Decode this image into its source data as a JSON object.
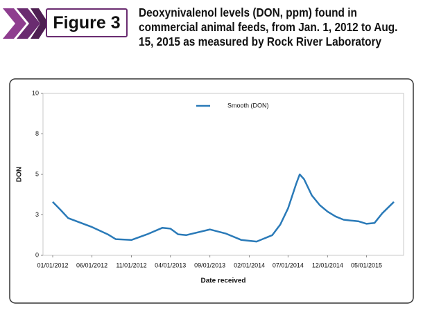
{
  "figure_label": "Figure 3",
  "chart_data": {
    "type": "line",
    "title": "Deoxynivalenol levels (DON, ppm) found in commercial animal feeds, from Jan. 1, 2012 to Aug. 15, 2015 as measured by Rock River Laboratory",
    "xlabel": "Date received",
    "ylabel": "DON",
    "x": [
      "01/01/2012",
      "02/01/2012",
      "03/01/2012",
      "06/01/2012",
      "08/01/2012",
      "09/01/2012",
      "11/01/2012",
      "01/01/2013",
      "03/01/2013",
      "04/01/2013",
      "05/01/2013",
      "06/01/2013",
      "09/01/2013",
      "11/01/2013",
      "01/01/2014",
      "03/01/2014",
      "05/01/2014",
      "06/01/2014",
      "07/01/2014",
      "08/01/2014",
      "08/15/2014",
      "09/01/2014",
      "10/01/2014",
      "11/01/2014",
      "12/01/2014",
      "01/01/2015",
      "02/01/2015",
      "03/01/2015",
      "04/01/2015",
      "05/01/2015",
      "06/01/2015",
      "07/01/2015",
      "08/15/2015"
    ],
    "series": [
      {
        "name": "Smooth (DON)",
        "color": "#2a7ab8",
        "values": [
          3.3,
          2.8,
          2.3,
          1.75,
          1.3,
          1.0,
          0.95,
          1.3,
          1.7,
          1.65,
          1.3,
          1.25,
          1.6,
          1.35,
          0.95,
          0.85,
          1.25,
          1.9,
          2.9,
          4.4,
          5.0,
          4.7,
          3.7,
          3.1,
          2.7,
          2.4,
          2.2,
          2.15,
          2.1,
          1.95,
          2.0,
          2.6,
          3.3
        ]
      }
    ],
    "xlim": [
      "01/01/2012",
      "08/15/2015"
    ],
    "xticks": [
      "01/01/2012",
      "06/01/2012",
      "11/01/2012",
      "04/01/2013",
      "09/01/2013",
      "02/01/2014",
      "07/01/2014",
      "12/01/2014",
      "05/01/2015"
    ],
    "ylim": [
      0,
      10
    ],
    "yticks": [
      0,
      {
        "value": 2.5,
        "label": "3"
      },
      5,
      {
        "value": 7.5,
        "label": "8"
      },
      10
    ],
    "grid": false,
    "legend": "top"
  }
}
